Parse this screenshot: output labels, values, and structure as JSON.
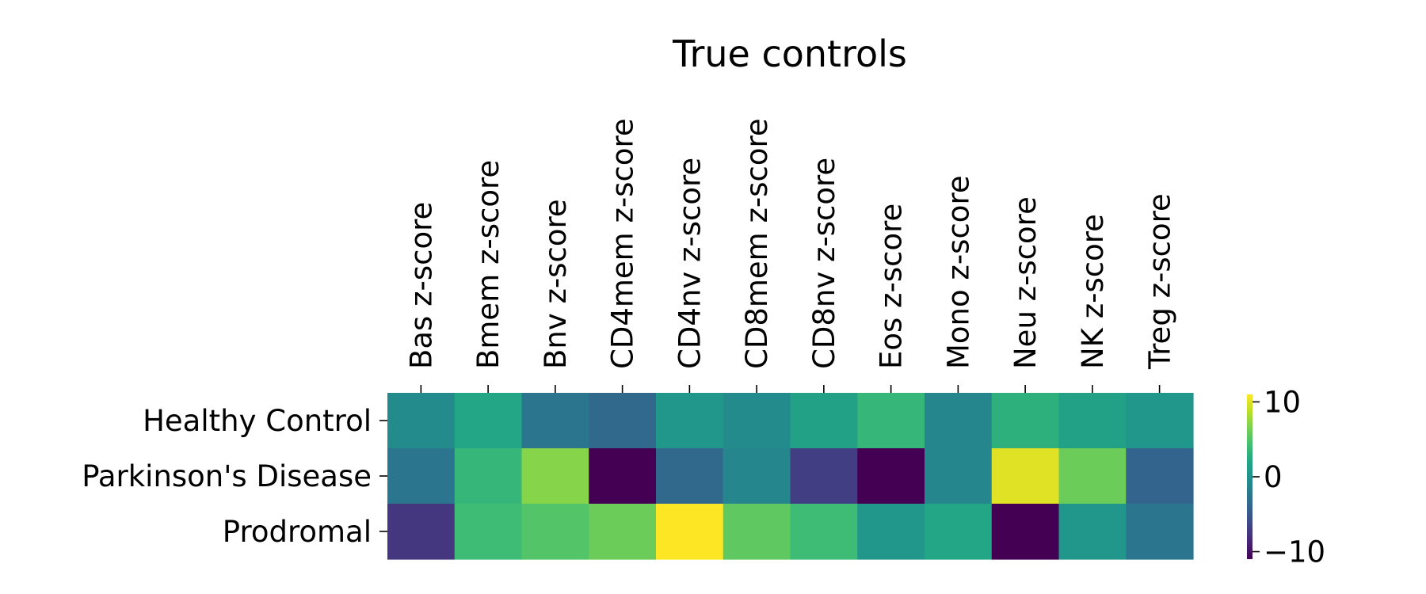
{
  "chart_data": {
    "type": "heatmap",
    "title": "True controls",
    "columns": [
      "Bas z-score",
      "Bmem z-score",
      "Bnv z-score",
      "CD4mem z-score",
      "CD4nv z-score",
      "CD8mem z-score",
      "CD8nv z-score",
      "Eos z-score",
      "Mono z-score",
      "Neu z-score",
      "NK z-score",
      "Treg z-score"
    ],
    "rows": [
      "Healthy Control",
      "Parkinson's Disease",
      "Prodromal"
    ],
    "values": [
      [
        -0.5,
        2.0,
        -2.5,
        -3.5,
        0.5,
        -0.5,
        1.5,
        3.5,
        -1.0,
        3.0,
        1.5,
        0.5
      ],
      [
        -2.5,
        3.5,
        7.0,
        -12.0,
        -3.5,
        -1.0,
        -7.0,
        -11.0,
        -1.0,
        10.0,
        6.0,
        -4.0
      ],
      [
        -7.5,
        4.0,
        5.0,
        6.0,
        11.0,
        5.5,
        4.0,
        0.5,
        2.0,
        -12.5,
        0.5,
        -2.5
      ]
    ],
    "colormap": "viridis",
    "vmin": -11,
    "vmax": 11,
    "colorbar_ticks": [
      10,
      0,
      -10
    ],
    "colorbar_tick_labels": [
      "10",
      "0",
      "−10"
    ],
    "x_tick_position": "top"
  }
}
